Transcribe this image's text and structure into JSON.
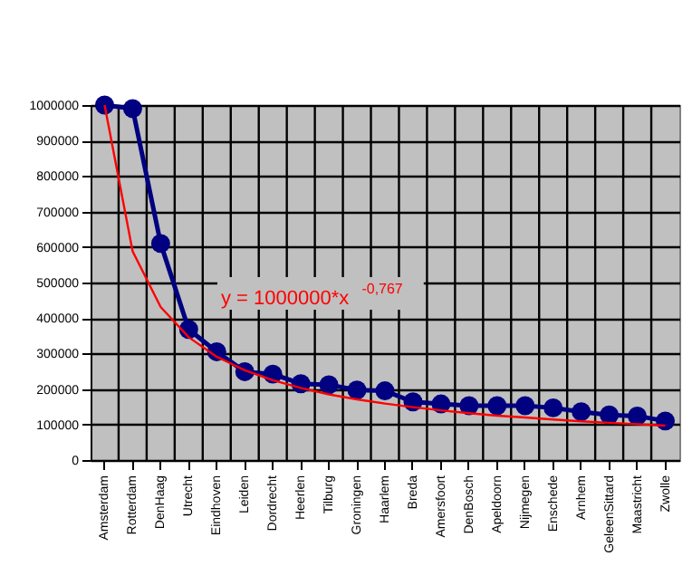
{
  "chart_data": {
    "type": "line",
    "categories": [
      "Amsterdam",
      "Rotterdam",
      "DenHaag",
      "Utrecht",
      "Eindhoven",
      "Leiden",
      "Dordrecht",
      "Heerlen",
      "Tilburg",
      "Groningen",
      "Haarlem",
      "Breda",
      "Amersfoort",
      "DenBosch",
      "Apeldoorn",
      "Nijmegen",
      "Enschede",
      "Arnhem",
      "GeleenSittard",
      "Maastricht",
      "Zwolle"
    ],
    "series": [
      {
        "color": "#000080",
        "marker": "circle",
        "values": [
          1000000,
          990000,
          610000,
          368000,
          305000,
          249000,
          242000,
          215000,
          212000,
          197000,
          195000,
          164000,
          158000,
          153000,
          153000,
          153000,
          147000,
          136000,
          127000,
          124000,
          110000
        ]
      },
      {
        "color": "#ff0000",
        "marker": "none",
        "values": [
          1000000,
          588000,
          431000,
          346000,
          291000,
          253000,
          225000,
          203000,
          185000,
          171000,
          159000,
          149000,
          140000,
          132000,
          125000,
          120000,
          114000,
          109000,
          105000,
          101000,
          97000
        ]
      }
    ],
    "ylim": [
      0,
      1000000
    ],
    "yticks": [
      0,
      100000,
      200000,
      300000,
      400000,
      500000,
      600000,
      700000,
      800000,
      900000,
      1000000
    ],
    "annotations": [
      "y = 1000000*x$^{-0,767}$"
    ],
    "grid": true,
    "legend": false
  }
}
